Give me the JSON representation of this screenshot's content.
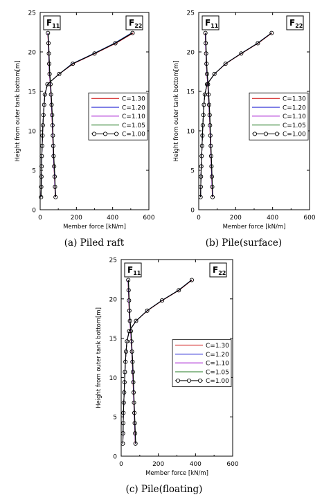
{
  "chart_data": [
    {
      "type": "line",
      "caption": "(a)  Piled  raft",
      "xlabel": "Member force [kN/m]",
      "ylabel": "Height from outer tank bottom[m]",
      "xlim": [
        0,
        600
      ],
      "ylim": [
        0,
        25
      ],
      "xticks": [
        "0",
        "200",
        "400",
        "600"
      ],
      "yticks": [
        "0",
        "5",
        "10",
        "15",
        "20",
        "25"
      ],
      "grid": false,
      "legend_position": "right",
      "box_labels": {
        "left": {
          "main": "F",
          "sub": "11"
        },
        "right": {
          "main": "F",
          "sub": "22"
        }
      },
      "legend": [
        "C=1.30",
        "C=1.20",
        "C=1.10",
        "C=1.05",
        "C=1.00"
      ],
      "f11": {
        "y": [
          1.6,
          2.9,
          4.2,
          5.5,
          6.8,
          8.1,
          9.4,
          10.7,
          12.0,
          13.3,
          14.6,
          15.9,
          17.2,
          18.5,
          19.8,
          21.1,
          22.4
        ],
        "x": [
          85,
          82,
          80,
          77,
          74,
          72,
          70,
          68,
          66,
          63,
          60,
          57,
          52,
          50,
          48,
          46,
          43
        ]
      },
      "f22": {
        "y": [
          1.6,
          2.9,
          4.2,
          5.5,
          6.8,
          8.1,
          9.4,
          10.7,
          12.0,
          13.3,
          14.6,
          15.9,
          17.2,
          18.5,
          19.8,
          21.1,
          22.4
        ],
        "x": [
          5,
          6,
          7,
          8,
          9,
          11,
          13,
          15,
          18,
          22,
          26,
          40,
          105,
          180,
          300,
          415,
          510
        ]
      },
      "series": [
        {
          "name": "C=1.30",
          "color": "#cc0000",
          "f22_top_shift": 4
        },
        {
          "name": "C=1.20",
          "color": "#0000cc",
          "f22_top_shift": -6
        },
        {
          "name": "C=1.10",
          "color": "#9900cc",
          "f22_top_shift": 0
        },
        {
          "name": "C=1.05",
          "color": "#006600",
          "f22_top_shift": -3
        },
        {
          "name": "C=1.00",
          "color": "#000000",
          "f22_top_shift": 0
        }
      ]
    },
    {
      "type": "line",
      "caption": "(b)  Pile(surface)",
      "xlabel": "Member force [kN/m]",
      "ylabel": "Height from outer tank bottom[m]",
      "xlim": [
        0,
        600
      ],
      "ylim": [
        0,
        25
      ],
      "xticks": [
        "0",
        "200",
        "400",
        "600"
      ],
      "yticks": [
        "0",
        "5",
        "10",
        "15",
        "20",
        "25"
      ],
      "grid": false,
      "legend_position": "right",
      "box_labels": {
        "left": {
          "main": "F",
          "sub": "11"
        },
        "right": {
          "main": "F",
          "sub": "22"
        }
      },
      "legend": [
        "C=1.30",
        "C=1.20",
        "C=1.10",
        "C=1.05",
        "C=1.00"
      ],
      "f11": {
        "y": [
          1.6,
          2.9,
          4.2,
          5.5,
          6.8,
          8.1,
          9.4,
          10.7,
          12.0,
          13.3,
          14.6,
          15.9,
          17.2,
          18.5,
          19.8,
          21.1,
          22.4
        ],
        "x": [
          75,
          73,
          71,
          69,
          67,
          65,
          63,
          61,
          59,
          56,
          53,
          50,
          45,
          42,
          40,
          38,
          36
        ]
      },
      "f22": {
        "y": [
          1.6,
          2.9,
          4.2,
          5.5,
          6.8,
          8.1,
          9.4,
          10.7,
          12.0,
          13.3,
          14.6,
          15.9,
          17.2,
          18.5,
          19.8,
          21.1,
          22.4
        ],
        "x": [
          10,
          11,
          12,
          14,
          16,
          18,
          20,
          22,
          25,
          28,
          33,
          45,
          85,
          145,
          230,
          320,
          395
        ]
      },
      "series": [
        {
          "name": "C=1.30",
          "color": "#cc0000",
          "f22_top_shift": 2
        },
        {
          "name": "C=1.20",
          "color": "#0000cc",
          "f22_top_shift": -2
        },
        {
          "name": "C=1.10",
          "color": "#9900cc",
          "f22_top_shift": 0
        },
        {
          "name": "C=1.05",
          "color": "#006600",
          "f22_top_shift": -1
        },
        {
          "name": "C=1.00",
          "color": "#000000",
          "f22_top_shift": 0
        }
      ]
    },
    {
      "type": "line",
      "caption": "(c)  Pile(floating)",
      "xlabel": "Member force [kN/m]",
      "ylabel": "Height from outer tank bottom[m]",
      "xlim": [
        0,
        600
      ],
      "ylim": [
        0,
        25
      ],
      "xticks": [
        "0",
        "200",
        "400",
        "600"
      ],
      "yticks": [
        "0",
        "5",
        "10",
        "15",
        "20",
        "25"
      ],
      "grid": false,
      "legend_position": "right",
      "box_labels": {
        "left": {
          "main": "F",
          "sub": "11"
        },
        "right": {
          "main": "F",
          "sub": "22"
        }
      },
      "legend": [
        "C=1.30",
        "C=1.20",
        "C=1.10",
        "C=1.05",
        "C=1.00"
      ],
      "f11": {
        "y": [
          1.6,
          2.9,
          4.2,
          5.5,
          6.8,
          8.1,
          9.4,
          10.7,
          12.0,
          13.3,
          14.6,
          15.9,
          17.2,
          18.5,
          19.8,
          21.1,
          22.4
        ],
        "x": [
          77,
          75,
          73,
          71,
          69,
          67,
          65,
          63,
          61,
          58,
          55,
          52,
          47,
          44,
          42,
          40,
          38
        ]
      },
      "f22": {
        "y": [
          1.6,
          2.9,
          4.2,
          5.5,
          6.8,
          8.1,
          9.4,
          10.7,
          12.0,
          13.3,
          14.6,
          15.9,
          17.2,
          18.5,
          19.8,
          21.1,
          22.4
        ],
        "x": [
          9,
          10,
          11,
          12,
          14,
          16,
          18,
          20,
          23,
          26,
          31,
          43,
          80,
          140,
          220,
          310,
          380
        ]
      },
      "series": [
        {
          "name": "C=1.30",
          "color": "#cc0000",
          "f22_top_shift": 2
        },
        {
          "name": "C=1.20",
          "color": "#0000cc",
          "f22_top_shift": -2
        },
        {
          "name": "C=1.10",
          "color": "#9900cc",
          "f22_top_shift": 0
        },
        {
          "name": "C=1.05",
          "color": "#006600",
          "f22_top_shift": -1
        },
        {
          "name": "C=1.00",
          "color": "#000000",
          "f22_top_shift": 0
        }
      ]
    }
  ]
}
